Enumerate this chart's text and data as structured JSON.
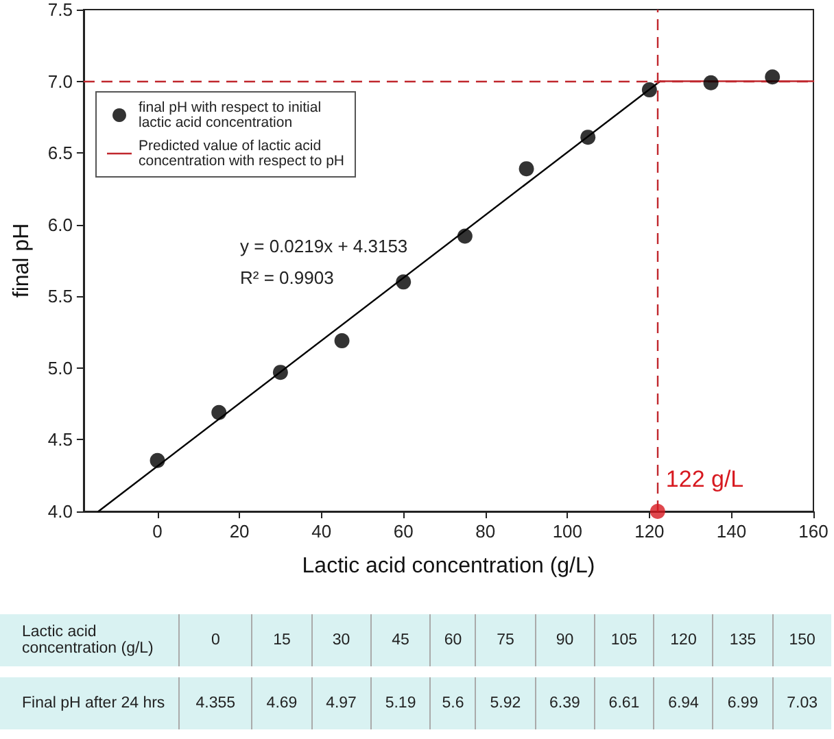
{
  "chart_data": {
    "type": "scatter",
    "xlabel": "Lactic acid concentration (g/L)",
    "ylabel": "final pH",
    "xlim": [
      -18,
      160
    ],
    "xticks": [
      0,
      20,
      40,
      60,
      80,
      100,
      120,
      140,
      160
    ],
    "ylim": [
      4,
      7.5
    ],
    "yticks": [
      {
        "value": 4,
        "label": "4.0"
      },
      {
        "value": 4.5,
        "label": "4.5"
      },
      {
        "value": 5,
        "label": "5.0"
      },
      {
        "value": 5.5,
        "label": "5.5"
      },
      {
        "value": 6,
        "label": "6.0"
      },
      {
        "value": 6.5,
        "label": "6.5"
      },
      {
        "value": 7,
        "label": "7.0"
      },
      {
        "value": 7.5,
        "label": "7.5"
      }
    ],
    "grid": false,
    "legend": "top left",
    "marker": "circle",
    "series": [
      {
        "name": "final pH with respect to initial lactic acid concentration",
        "color": "#000000",
        "x": [
          0,
          15,
          30,
          45,
          60,
          75,
          90,
          105,
          120,
          135,
          150
        ],
        "values": [
          4.355,
          4.69,
          4.97,
          5.19,
          5.6,
          5.92,
          6.39,
          6.61,
          6.94,
          6.99,
          7.03
        ]
      },
      {
        "type": "line",
        "color": "#000000",
        "x": [
          -14.4,
          122.6
        ],
        "values": [
          4.0,
          7.0
        ],
        "marker": "none"
      },
      {
        "type": "line",
        "name": "Predicted value of lactic acid concentration with respect to pH",
        "color": "#c0272d",
        "x": [
          122.6,
          160
        ],
        "values": [
          7.0,
          7.0
        ],
        "marker": "none"
      },
      {
        "color": "#d71920",
        "x": [
          122
        ],
        "values": [
          4.0
        ]
      }
    ],
    "ref_lines": [
      {
        "axis": "y",
        "value": 7.0,
        "color": "#c0272d",
        "line_style": "dashed"
      },
      {
        "axis": "x",
        "value": 122,
        "color": "#c0272d",
        "line_style": "dashed"
      }
    ],
    "annotations": [
      "y = 0.0219x + 4.3153",
      "R² = 0.9903",
      "Lactic acid concentration (g/L)",
      "Final pH after 24 hrs",
      {
        "text": "122 g/L",
        "x": 122,
        "y": 4.0
      },
      "0",
      "15",
      "30",
      "45",
      "60",
      "75",
      "90",
      "105",
      "120",
      "135",
      "150",
      "4.355",
      "4.69",
      "4.97",
      "5.19",
      "5.6",
      "5.92",
      "6.39",
      "6.61",
      "6.94",
      "6.99",
      "7.03"
    ]
  }
}
